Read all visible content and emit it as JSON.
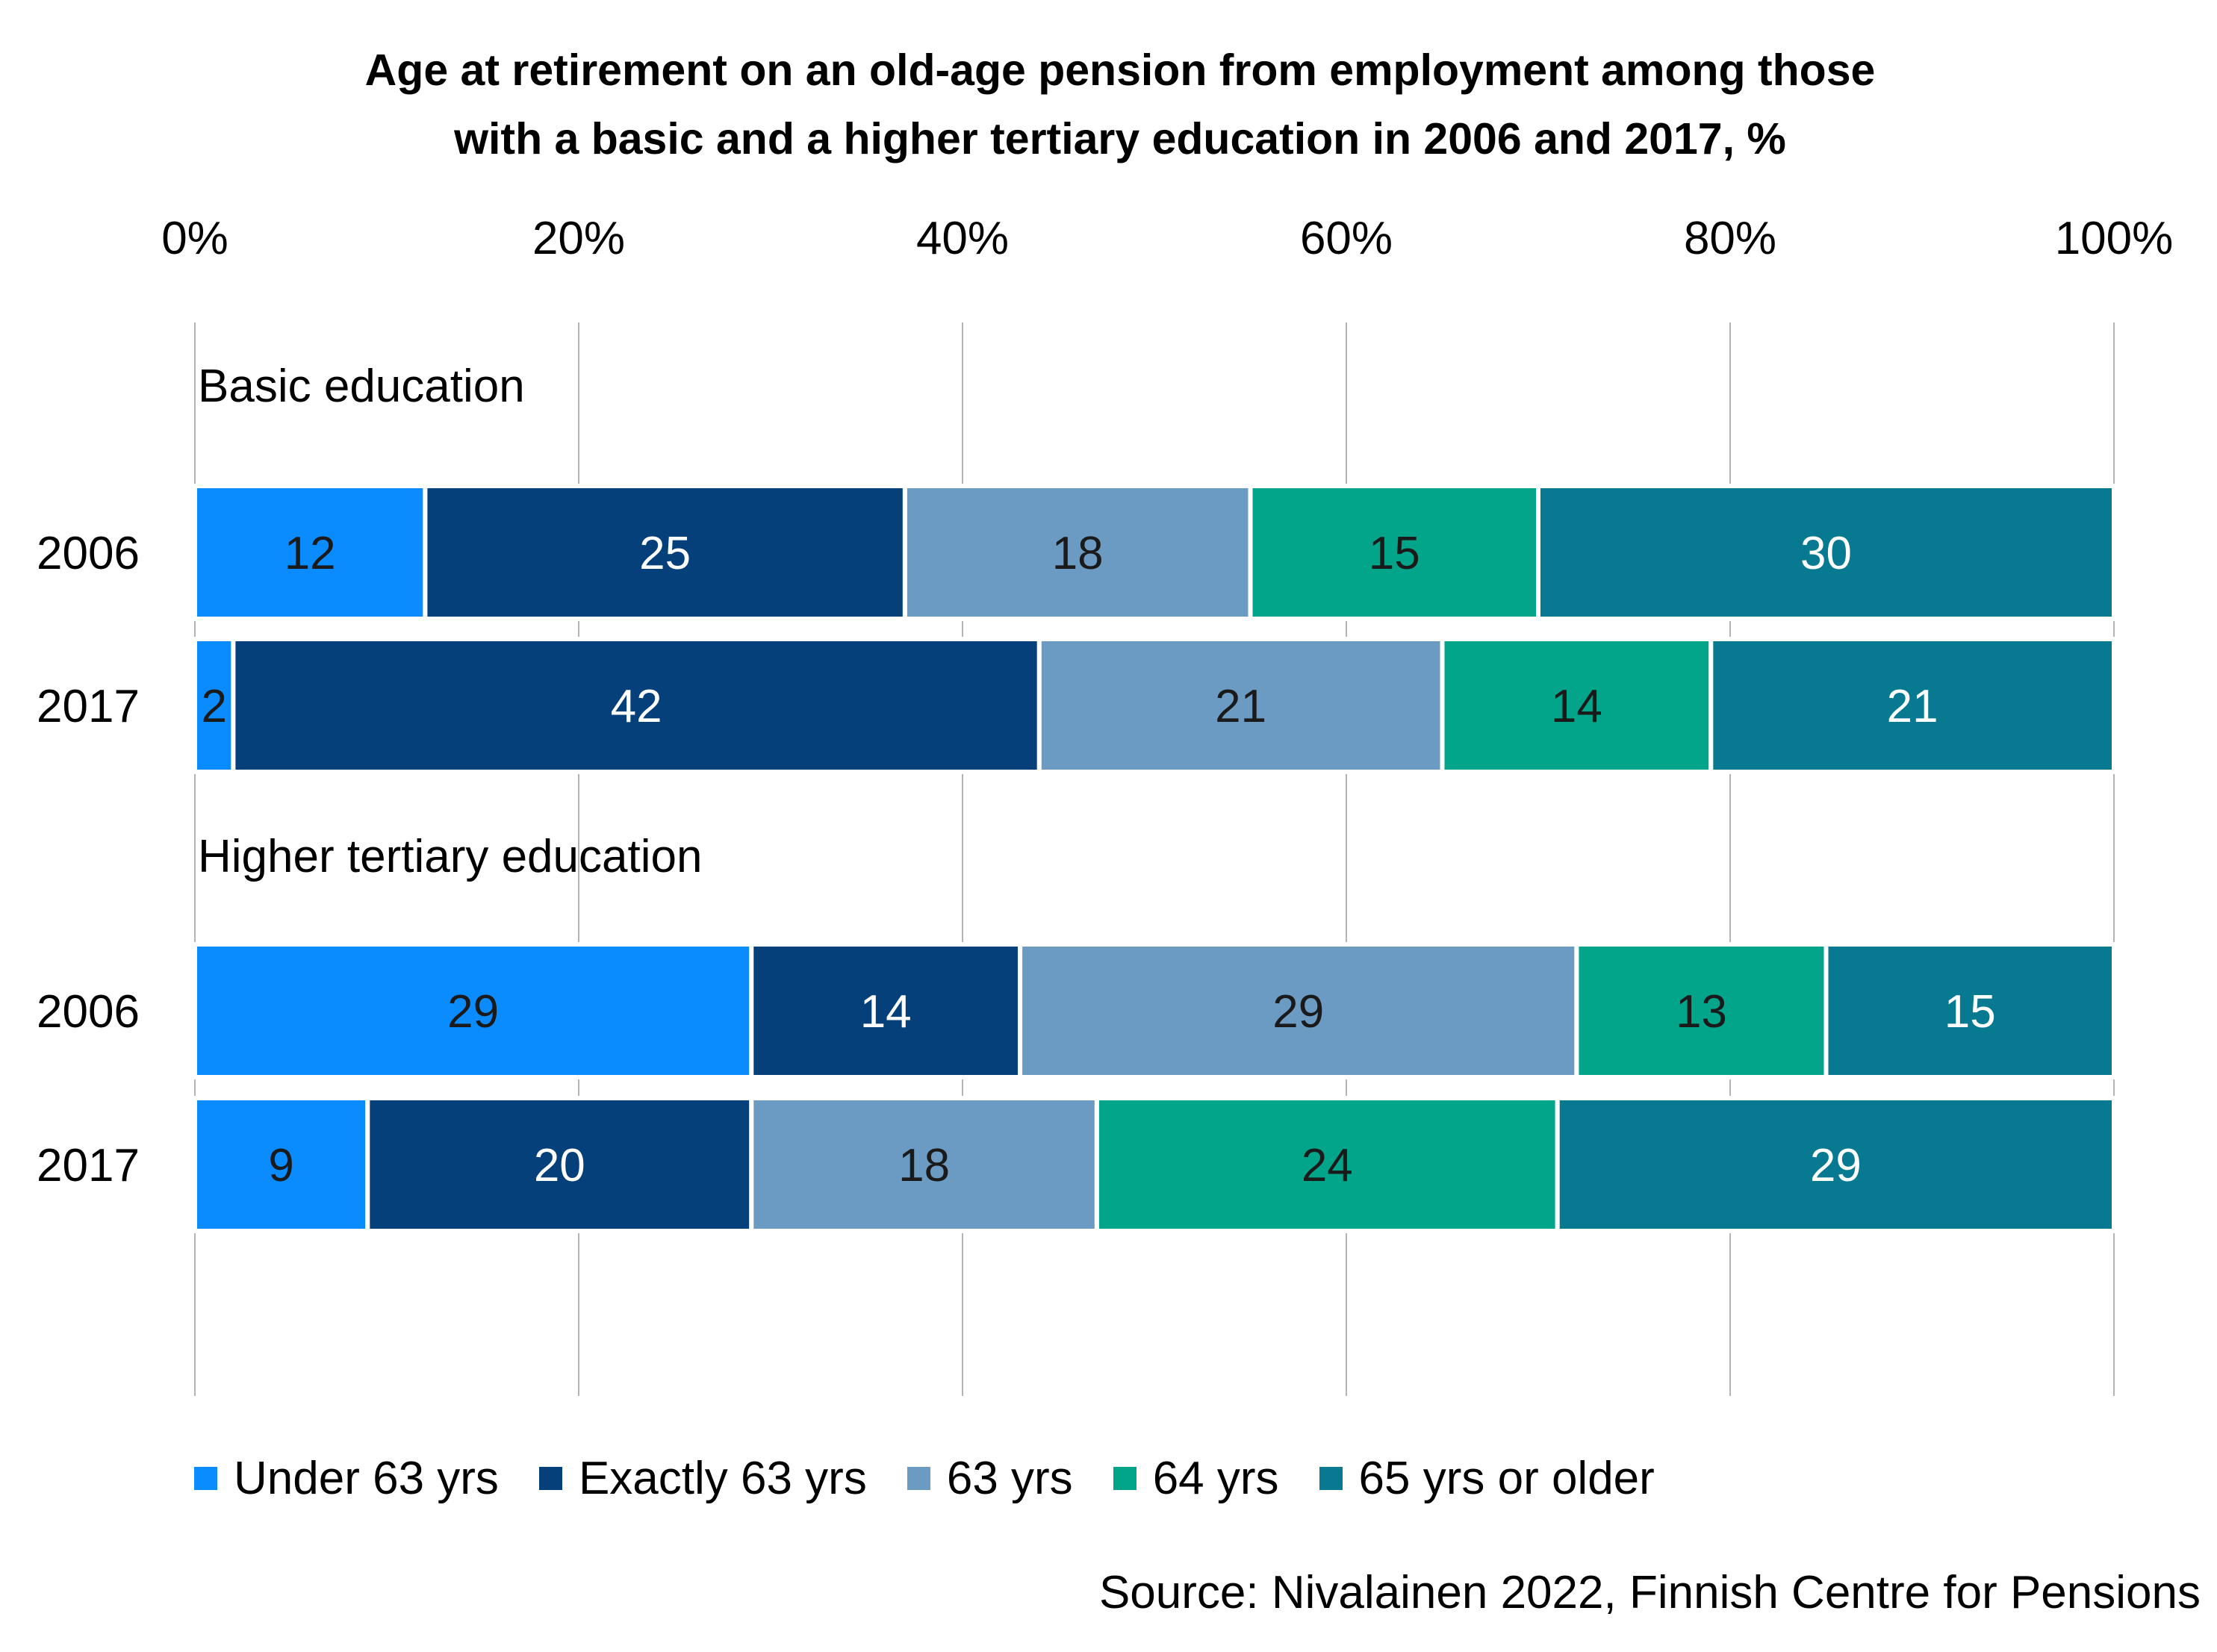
{
  "chart_data": {
    "type": "bar",
    "orientation": "horizontal",
    "stacked": true,
    "percent_stacked": true,
    "title_lines": [
      "Age at retirement on an old-age pension from employment among those",
      "with a basic and a higher tertiary education in 2006 and 2017, %"
    ],
    "x_ticks": [
      "0%",
      "20%",
      "40%",
      "60%",
      "80%",
      "100%"
    ],
    "xlim": [
      0,
      100
    ],
    "grid": true,
    "legend_position": "bottom",
    "groups": [
      {
        "label": "Basic education",
        "rows": [
          {
            "label": "2006",
            "values": [
              12,
              25,
              18,
              15,
              30
            ]
          },
          {
            "label": "2017",
            "values": [
              2,
              42,
              21,
              14,
              21
            ]
          }
        ]
      },
      {
        "label": "Higher tertiary education",
        "rows": [
          {
            "label": "2006",
            "values": [
              29,
              14,
              29,
              13,
              15
            ]
          },
          {
            "label": "2017",
            "values": [
              9,
              20,
              18,
              24,
              29
            ]
          }
        ]
      }
    ],
    "series": [
      {
        "name": "Under 63 yrs",
        "color": "#0a8cff",
        "label_color": "#1a1a1a"
      },
      {
        "name": "Exactly 63 yrs",
        "color": "#05407a",
        "label_color": "#ffffff"
      },
      {
        "name": "63 yrs",
        "color": "#6b9bc3",
        "label_color": "#1a1a1a"
      },
      {
        "name": "64 yrs",
        "color": "#02a58a",
        "label_color": "#1a1a1a"
      },
      {
        "name": "65 yrs or older",
        "color": "#077a91",
        "label_color": "#ffffff"
      }
    ],
    "source": "Source: Nivalainen 2022, Finnish Centre for Pensions"
  }
}
